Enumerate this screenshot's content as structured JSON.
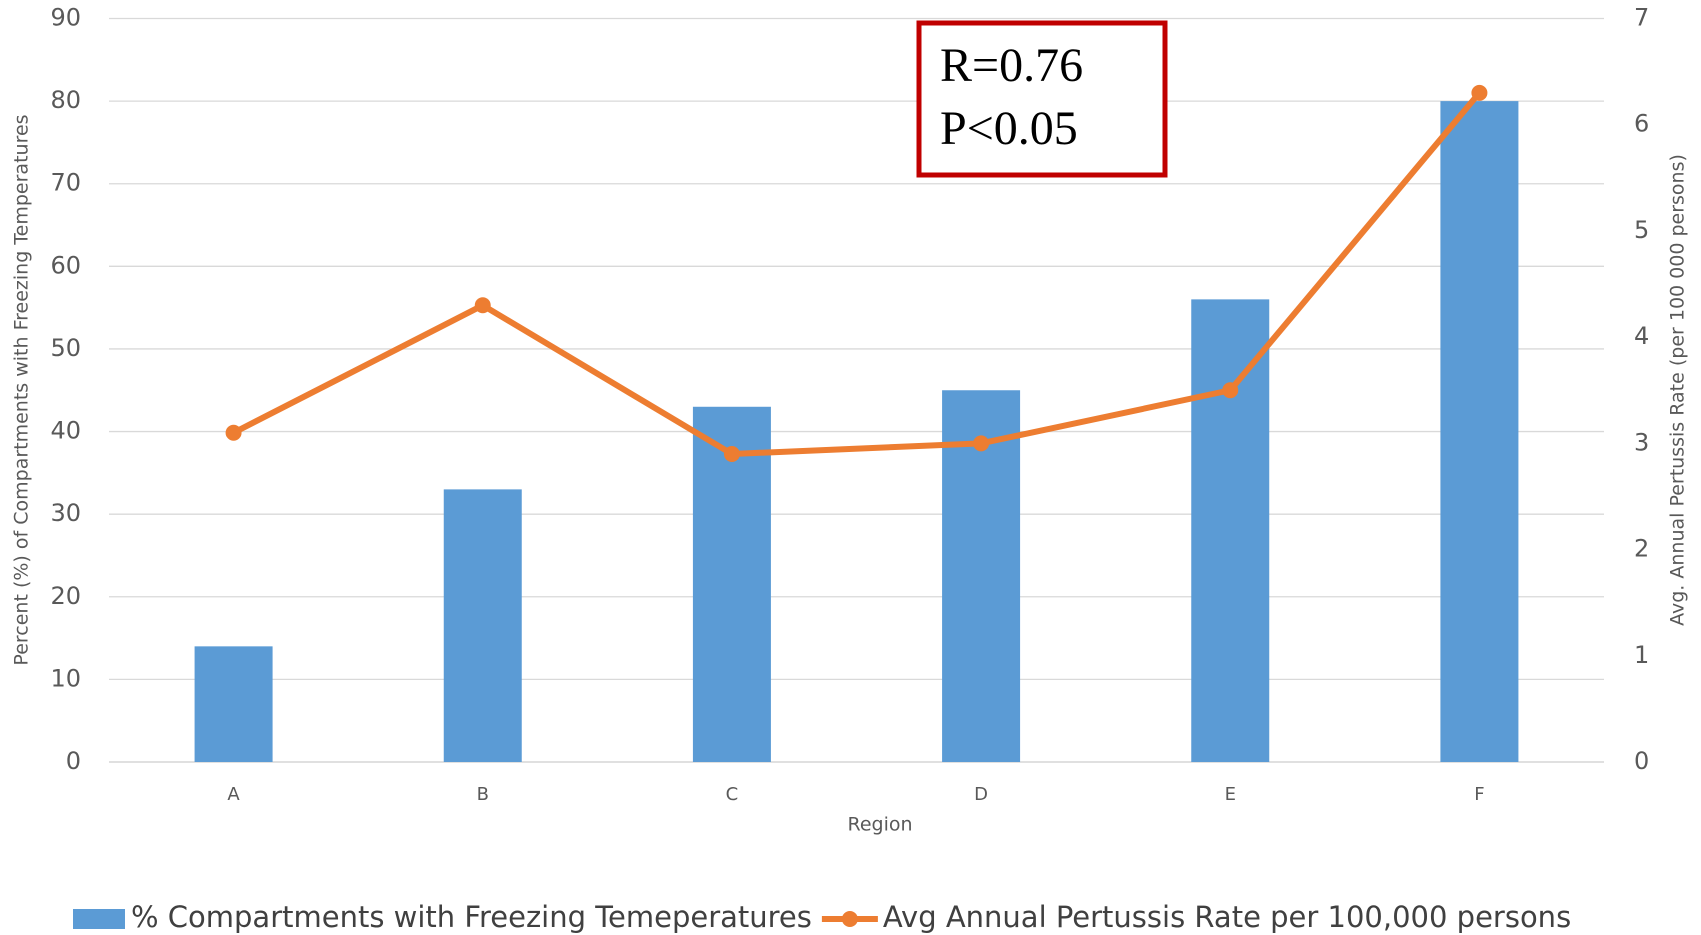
{
  "chart_data": {
    "type": "bar_line",
    "annotations": [
      "R=0.76",
      "P<0.05"
    ],
    "categories": [
      "A",
      "B",
      "C",
      "D",
      "E",
      "F"
    ],
    "x_label": "Region",
    "y_label": "Percent (%) of Compartments with Freezing Temperatures",
    "y2_label": "Avg. Annual Pertussis Rate (per 100 000 persons)",
    "series": [
      {
        "name": "% Compartments with Freezing Temeperatures",
        "type": "bar",
        "color": "#5b9bd5",
        "values": [
          14,
          33,
          43,
          45,
          56,
          80
        ]
      },
      {
        "name": "Avg Annual Pertussis Rate per 100,000 persons",
        "type": "line",
        "axis": "y2",
        "color": "#ed7d31",
        "values": [
          3.1,
          4.3,
          2.9,
          3.0,
          3.5,
          6.3
        ]
      }
    ],
    "ylim": [
      0,
      90
    ],
    "yticks": [
      0,
      10,
      20,
      30,
      40,
      50,
      60,
      70,
      80,
      90
    ],
    "y2lim": [
      0,
      7
    ],
    "y2ticks": [
      0,
      1,
      2,
      3,
      4,
      5,
      6,
      7
    ],
    "grid": true,
    "legend": "bottom"
  }
}
